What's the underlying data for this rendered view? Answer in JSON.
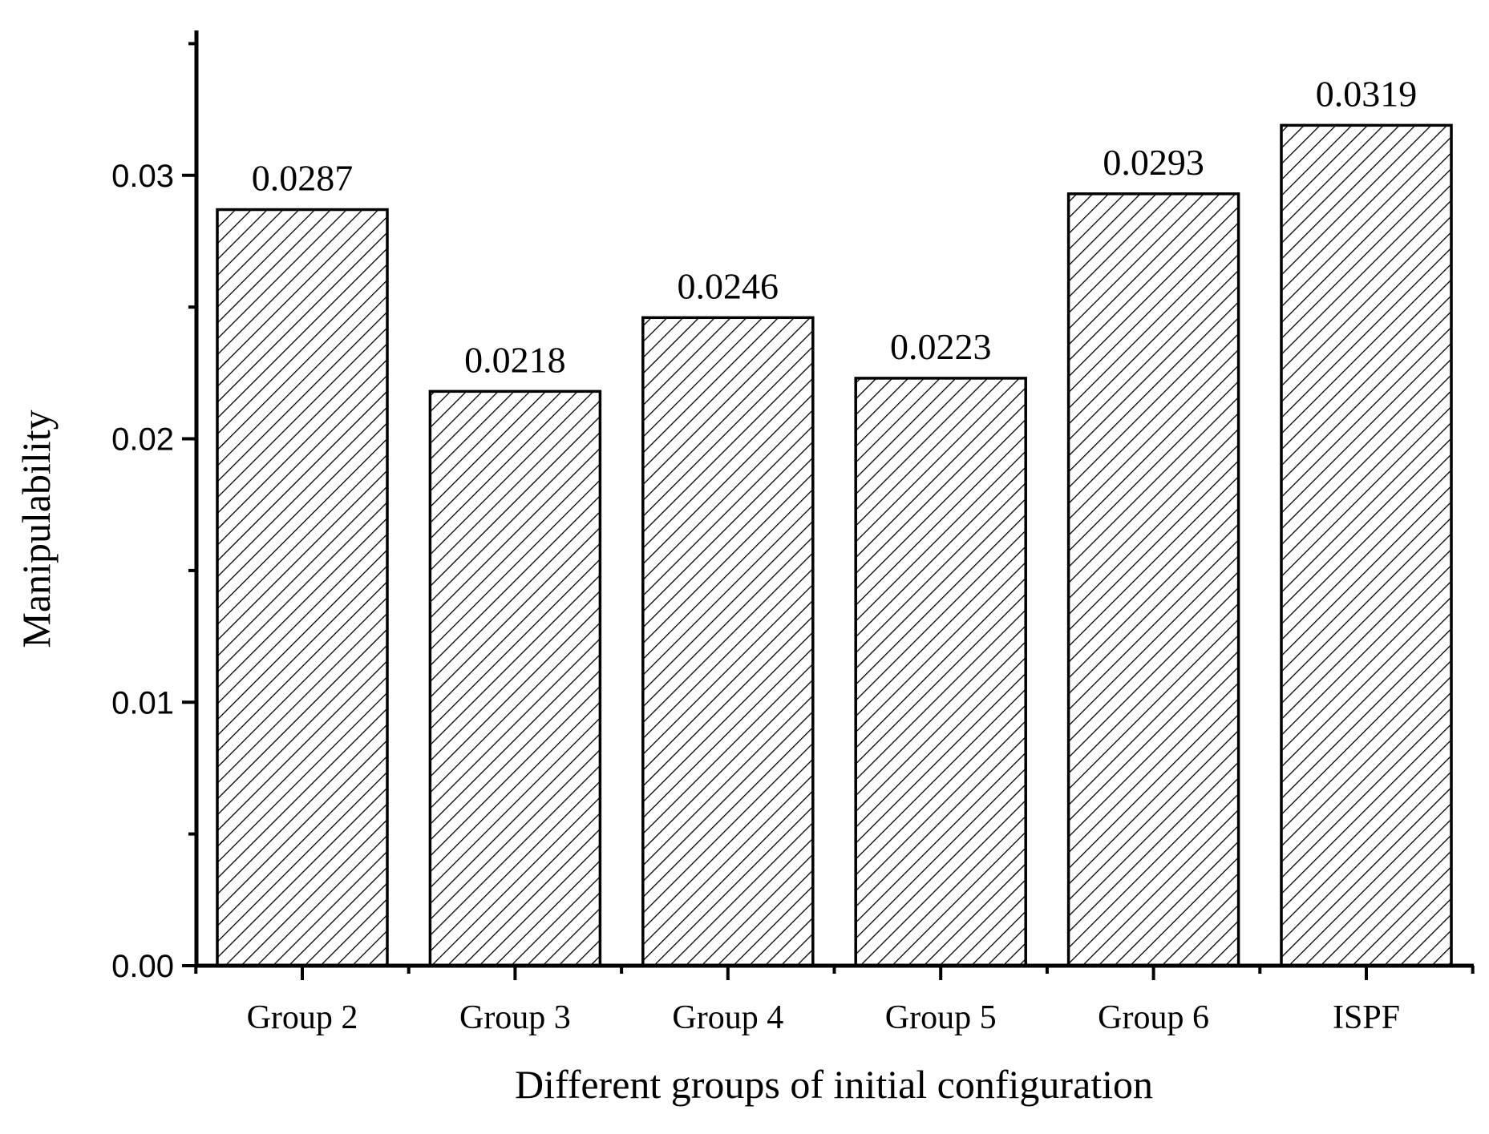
{
  "chart_data": {
    "type": "bar",
    "title": "",
    "xlabel": "Different groups of initial configuration",
    "ylabel": "Manipulability",
    "categories": [
      "Group 2",
      "Group 3",
      "Group 4",
      "Group 5",
      "Group 6",
      "ISPF"
    ],
    "values": [
      0.0287,
      0.0218,
      0.0246,
      0.0223,
      0.0293,
      0.0319
    ],
    "value_labels": [
      "0.0287",
      "0.0218",
      "0.0246",
      "0.0223",
      "0.0293",
      "0.0319"
    ],
    "ylim": [
      0,
      0.0355
    ],
    "yticks": [
      0.0,
      0.01,
      0.02,
      0.03
    ],
    "ytick_labels": [
      "0.00",
      "0.01",
      "0.02",
      "0.03"
    ],
    "grid": false,
    "bar_fill": "diagonal-hatch",
    "bar_color": "#000000"
  }
}
